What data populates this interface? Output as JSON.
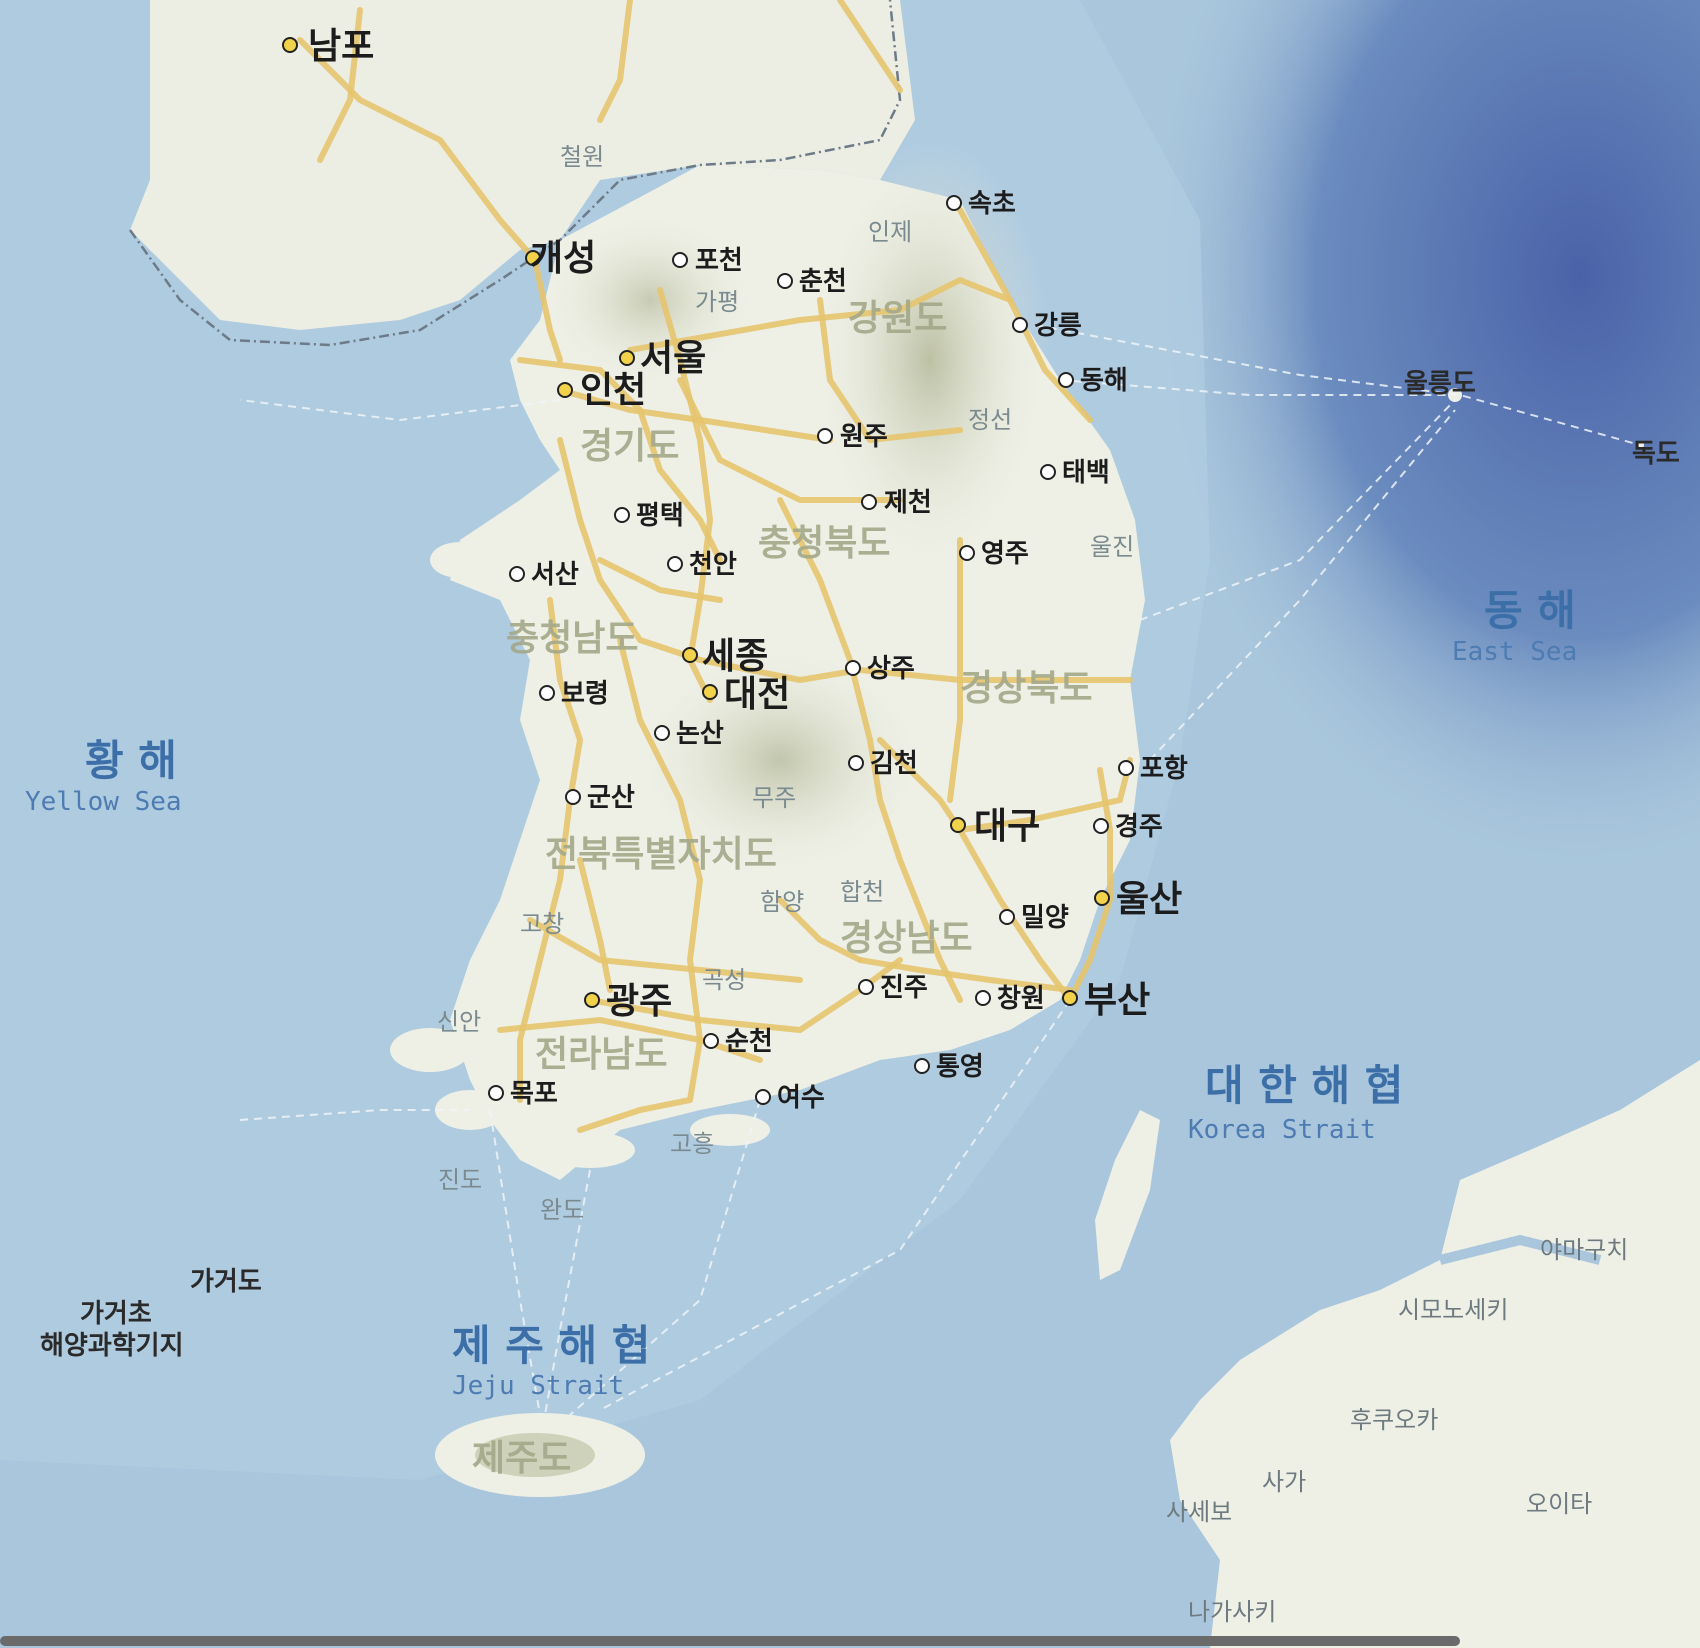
{
  "colors": {
    "sea_shallow": "#a9c6dc",
    "sea_deep": "#5473b0",
    "land": "#eef0e6",
    "mountain": "#c9cbb2",
    "road": "#e6c46e",
    "sea_label": "#3c6fa8",
    "province_label": "#a4a88a"
  },
  "seas": {
    "yellow_ko": "황 해",
    "yellow_en": "Yellow Sea",
    "east_ko": "동 해",
    "east_en": "East Sea",
    "korea_strait_ko": "대 한 해 협",
    "korea_strait_en": "Korea Strait",
    "jeju_strait_ko": "제 주 해 협",
    "jeju_strait_en": "Jeju Strait"
  },
  "provinces": {
    "gyeonggi": "경기도",
    "gangwon": "강원도",
    "chungbuk": "충청북도",
    "chungnam": "충청남도",
    "gyeongbuk": "경상북도",
    "jeonbuk": "전북특별자치도",
    "gyeongnam": "경상남도",
    "jeonnam": "전라남도",
    "jeju": "제주도"
  },
  "cities": {
    "nampo": "남포",
    "kaesong": "개성",
    "seoul": "서울",
    "incheon": "인천",
    "sejong": "세종",
    "daejeon": "대전",
    "daegu": "대구",
    "ulsan": "울산",
    "busan": "부산",
    "gwangju": "광주",
    "pocheon": "포천",
    "chuncheon": "춘천",
    "sokcho": "속초",
    "gangneung": "강릉",
    "donghae": "동해",
    "wonju": "원주",
    "taebaek": "태백",
    "jecheon": "제천",
    "pyeongtaek": "평택",
    "seosan": "서산",
    "cheonan": "천안",
    "yeongju": "영주",
    "sangju": "상주",
    "boryeong": "보령",
    "nonsan": "논산",
    "gimcheon": "김천",
    "pohang": "포항",
    "gunsan": "군산",
    "gyeongju": "경주",
    "miryang": "밀양",
    "jinju": "진주",
    "changwon": "창원",
    "suncheon": "순천",
    "tongyeong": "통영",
    "mokpo": "목포",
    "yeosu": "여수"
  },
  "towns": {
    "cheorwon": "철원",
    "inje": "인제",
    "gapyeong": "가평",
    "jeongseon": "정선",
    "uljin": "울진",
    "muju": "무주",
    "hapcheon": "합천",
    "hamyang": "함양",
    "gochang": "고창",
    "gokseong": "곡성",
    "sinan": "신안",
    "goheung": "고흥",
    "jindo": "진도",
    "wando": "완도"
  },
  "islands": {
    "ulleungdo": "울릉도",
    "dokdo": "독도",
    "gageodo": "가거도",
    "gageocho_1": "가거초",
    "gageocho_2": "해양과학기지"
  },
  "japan": {
    "yamaguchi": "야마구치",
    "shimonoseki": "시모노세키",
    "fukuoka": "후쿠오카",
    "saga": "사가",
    "sasebo": "사세보",
    "oita": "오이타",
    "nagasaki": "나가사키"
  }
}
